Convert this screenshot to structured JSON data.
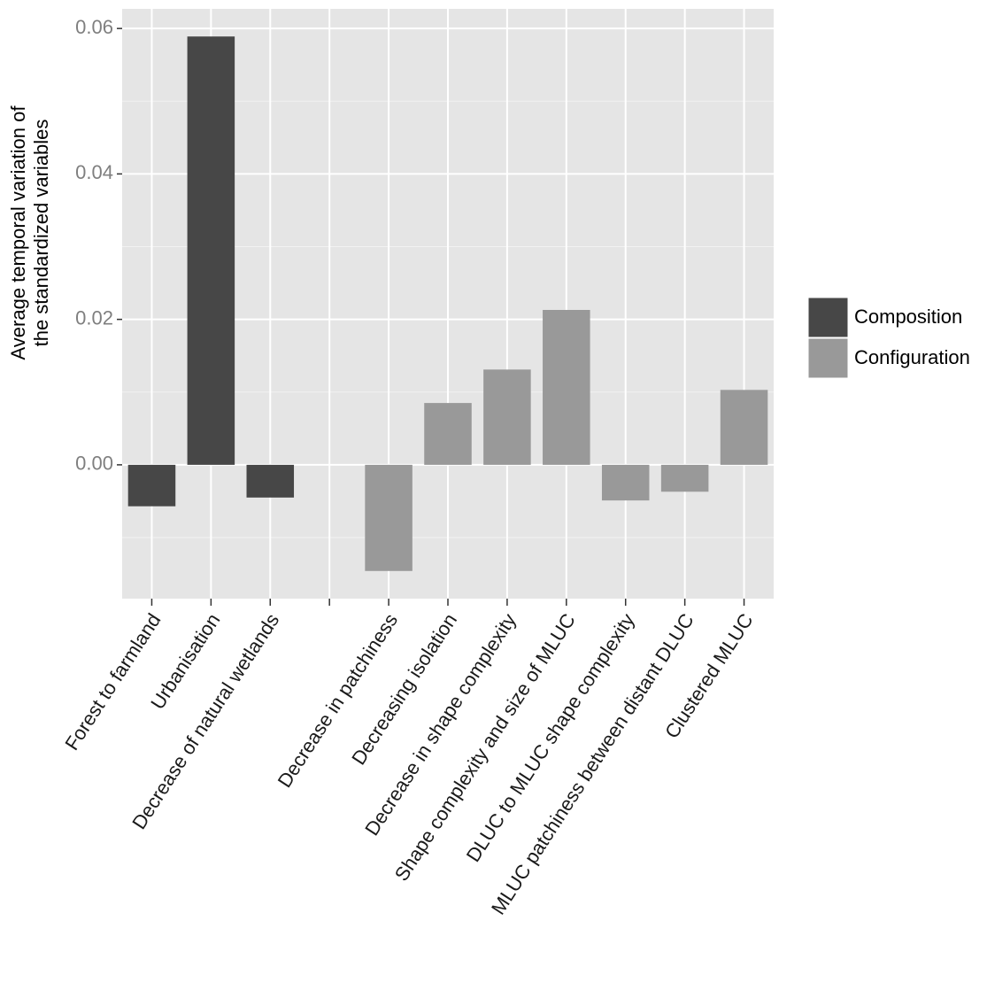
{
  "chart_data": {
    "type": "bar",
    "ylabel": [
      "Average temporal variation of",
      "the standardized variables"
    ],
    "categories": [
      "Forest to farmland",
      "Urbanisation",
      "Decrease of natural wetlands",
      null,
      "Decrease in patchiness",
      "Decreasing isolation",
      "Decrease in shape complexity",
      "Shape complexity and size of MLUC",
      "DLUC to MLUC shape complexity",
      "MLUC patchiness between distant DLUC",
      "Clustered MLUC"
    ],
    "series": [
      {
        "name": "Composition",
        "color": "#474747",
        "values": [
          -0.0057,
          0.0589,
          -0.0045,
          null,
          null,
          null,
          null,
          null,
          null,
          null,
          null
        ]
      },
      {
        "name": "Configuration",
        "color": "#999999",
        "values": [
          null,
          null,
          null,
          null,
          -0.0146,
          0.0085,
          0.0131,
          0.0213,
          -0.0049,
          -0.0037,
          0.0103
        ]
      }
    ],
    "ylim": [
      -0.0184,
      0.0627
    ],
    "yticks": [
      {
        "value": 0,
        "label": "0.00"
      },
      0.02,
      0.04,
      0.06
    ],
    "yminor": [
      -0.01,
      0.01,
      0.03,
      0.05
    ],
    "grid": true,
    "legend": "right"
  }
}
